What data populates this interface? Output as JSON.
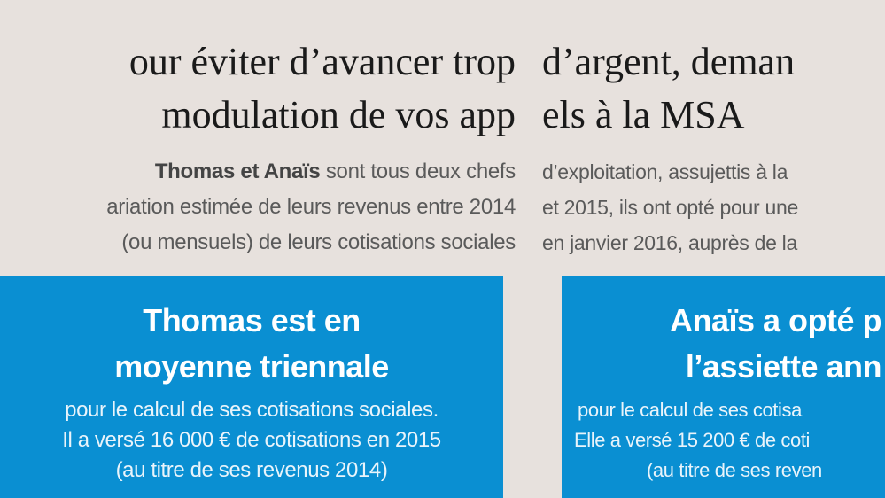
{
  "left": {
    "title_lines": [
      "our éviter d’avancer trop",
      " modulation de vos app"
    ],
    "intro_bold": "Thomas et Anaïs",
    "intro_lines": [
      " sont tous deux chefs",
      "ariation estimée de leurs revenus entre 2014",
      "(ou mensuels) de leurs cotisations sociales"
    ],
    "box": {
      "heading_lines": [
        "Thomas est en",
        "moyenne triennale"
      ],
      "text_lines": [
        "pour le calcul de ses cotisations sociales.",
        "Il a versé 16 000 € de cotisations en 2015",
        "(au titre de ses revenus 2014)"
      ]
    }
  },
  "right": {
    "title_lines": [
      "d’argent, deman",
      "els à la MSA"
    ],
    "intro_lines": [
      "d’exploitation, assujettis à la",
      "et 2015, ils ont opté pour une",
      "en janvier 2016, auprès de la"
    ],
    "box": {
      "heading_lines": [
        "Anaïs a opté p",
        "l’assiette ann"
      ],
      "text_lines": [
        "pour le calcul de ses cotisa",
        "Elle a versé 15 200 € de coti",
        "(au titre de ses reven"
      ]
    }
  },
  "colors": {
    "box_blue": "#0a8fd2",
    "background": "#e7e1dd"
  }
}
